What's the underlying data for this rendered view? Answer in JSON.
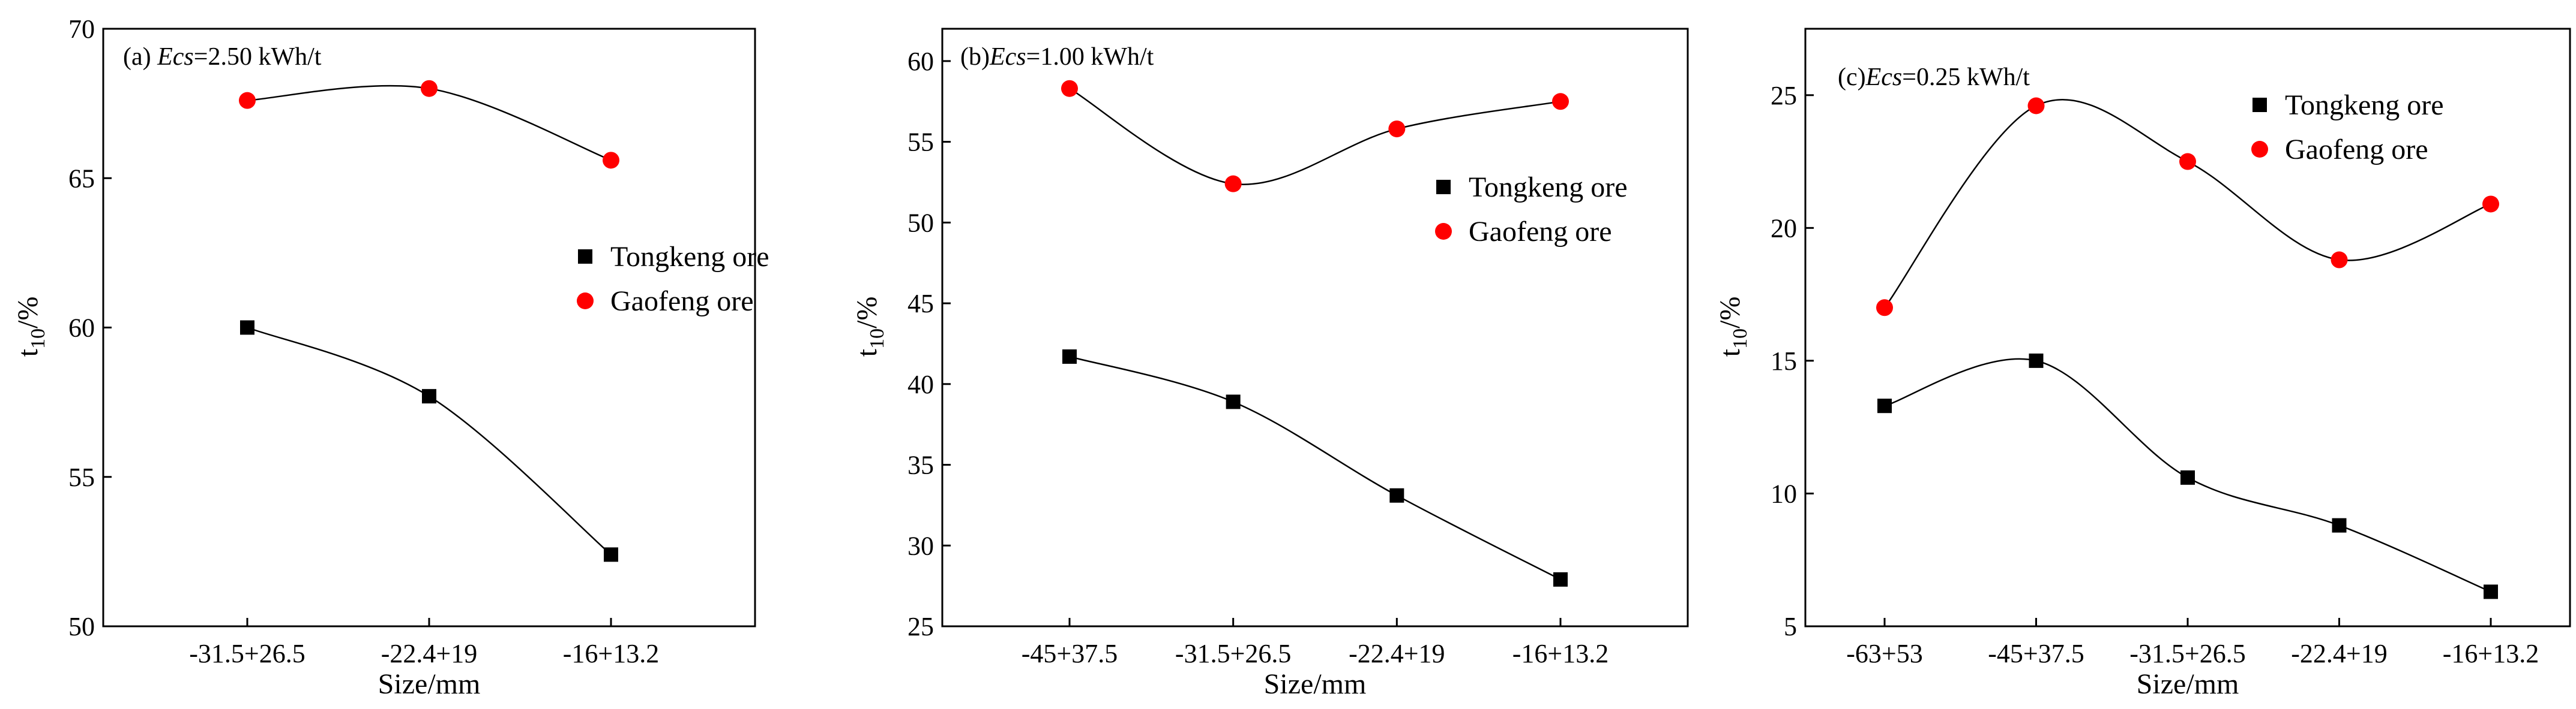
{
  "figure": {
    "marker_colors": {
      "tongkeng": "#000000",
      "gaofeng": "#ff0000"
    },
    "line_color": "#000000"
  },
  "chart_data": [
    {
      "type": "scatter",
      "panel_prefix": "(a) ",
      "panel_ecs": "Ecs",
      "panel_suffix": "=2.50 kWh/t",
      "xlabel": "Size/mm",
      "ylabel_main": "t",
      "ylabel_sub": "10",
      "ylabel_unit": "/%",
      "categories": [
        "-31.5+26.5",
        "-22.4+19",
        "-16+13.2"
      ],
      "ylim": [
        50,
        70
      ],
      "yticks": [
        50,
        55,
        60,
        65,
        70
      ],
      "legend_position": "middle-right",
      "series": [
        {
          "name": "Tongkeng ore",
          "marker": "square",
          "values": [
            60.0,
            57.7,
            52.4
          ]
        },
        {
          "name": "Gaofeng ore",
          "marker": "circle",
          "values": [
            67.6,
            68.0,
            65.6
          ]
        }
      ]
    },
    {
      "type": "scatter",
      "panel_prefix": "(b)",
      "panel_ecs": "Ecs",
      "panel_suffix": "=1.00 kWh/t",
      "xlabel": "Size/mm",
      "ylabel_main": "t",
      "ylabel_sub": "10",
      "ylabel_unit": "/%",
      "categories": [
        "-45+37.5",
        "-31.5+26.5",
        "-22.4+19",
        "-16+13.2"
      ],
      "ylim": [
        25,
        62
      ],
      "yticks": [
        25,
        30,
        35,
        40,
        45,
        50,
        55,
        60
      ],
      "legend_position": "right",
      "series": [
        {
          "name": "Tongkeng ore",
          "marker": "square",
          "values": [
            41.7,
            38.9,
            33.1,
            27.9
          ]
        },
        {
          "name": "Gaofeng ore",
          "marker": "circle",
          "values": [
            58.3,
            52.4,
            55.8,
            57.5
          ]
        }
      ]
    },
    {
      "type": "scatter",
      "panel_prefix": "(c)",
      "panel_ecs": "Ecs",
      "panel_suffix": "=0.25 kWh/t",
      "xlabel": "Size/mm",
      "ylabel_main": "t",
      "ylabel_sub": "10",
      "ylabel_unit": "/%",
      "categories": [
        "-63+53",
        "-45+37.5",
        "-31.5+26.5",
        "-22.4+19",
        "-16+13.2"
      ],
      "ylim": [
        5,
        27.5
      ],
      "yticks": [
        5,
        10,
        15,
        20,
        25
      ],
      "legend_position": "top-right",
      "series": [
        {
          "name": "Tongkeng ore",
          "marker": "square",
          "values": [
            13.3,
            15.0,
            10.6,
            8.8,
            6.3
          ]
        },
        {
          "name": "Gaofeng ore",
          "marker": "circle",
          "values": [
            17.0,
            24.6,
            22.5,
            18.8,
            20.9
          ]
        }
      ]
    }
  ]
}
